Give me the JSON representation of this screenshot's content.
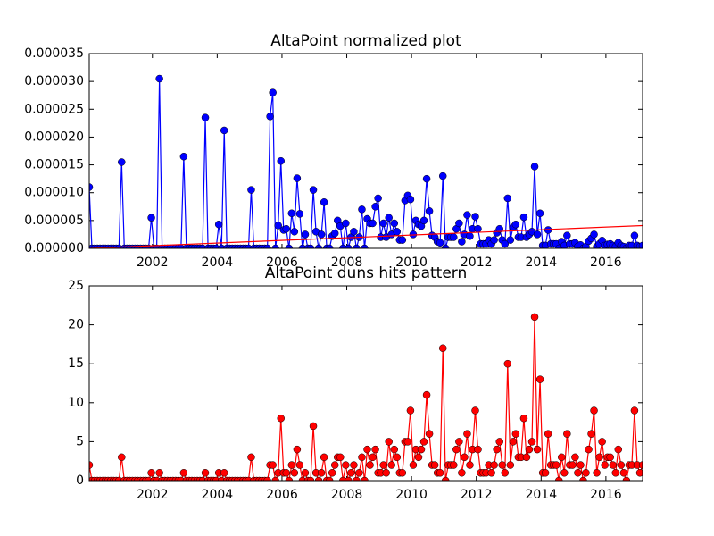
{
  "chart_data": [
    {
      "type": "line",
      "title": "AltaPoint normalized plot",
      "x": [
        2000.05,
        2000.133,
        2000.217,
        2000.3,
        2000.383,
        2000.467,
        2000.55,
        2000.633,
        2000.717,
        2000.8,
        2000.883,
        2000.967,
        2001.05,
        2001.133,
        2001.217,
        2001.3,
        2001.383,
        2001.467,
        2001.55,
        2001.633,
        2001.717,
        2001.8,
        2001.883,
        2001.967,
        2002.05,
        2002.133,
        2002.217,
        2002.3,
        2002.383,
        2002.467,
        2002.55,
        2002.633,
        2002.717,
        2002.8,
        2002.883,
        2002.967,
        2003.05,
        2003.133,
        2003.217,
        2003.3,
        2003.383,
        2003.467,
        2003.55,
        2003.633,
        2003.717,
        2003.8,
        2003.883,
        2003.967,
        2004.05,
        2004.133,
        2004.217,
        2004.3,
        2004.383,
        2004.467,
        2004.55,
        2004.633,
        2004.717,
        2004.8,
        2004.883,
        2004.967,
        2005.05,
        2005.133,
        2005.217,
        2005.3,
        2005.383,
        2005.467,
        2005.55,
        2005.633,
        2005.717,
        2005.8,
        2005.883,
        2005.967,
        2006.05,
        2006.133,
        2006.217,
        2006.3,
        2006.383,
        2006.467,
        2006.55,
        2006.633,
        2006.717,
        2006.8,
        2006.883,
        2006.967,
        2007.05,
        2007.133,
        2007.217,
        2007.3,
        2007.383,
        2007.467,
        2007.55,
        2007.633,
        2007.717,
        2007.8,
        2007.883,
        2007.967,
        2008.05,
        2008.133,
        2008.217,
        2008.3,
        2008.383,
        2008.467,
        2008.55,
        2008.633,
        2008.717,
        2008.8,
        2008.883,
        2008.967,
        2009.05,
        2009.133,
        2009.217,
        2009.3,
        2009.383,
        2009.467,
        2009.55,
        2009.633,
        2009.717,
        2009.8,
        2009.883,
        2009.967,
        2010.05,
        2010.133,
        2010.217,
        2010.3,
        2010.383,
        2010.467,
        2010.55,
        2010.633,
        2010.717,
        2010.8,
        2010.883,
        2010.967,
        2011.05,
        2011.133,
        2011.217,
        2011.3,
        2011.383,
        2011.467,
        2011.55,
        2011.633,
        2011.717,
        2011.8,
        2011.883,
        2011.967,
        2012.05,
        2012.133,
        2012.217,
        2012.3,
        2012.383,
        2012.467,
        2012.55,
        2012.633,
        2012.717,
        2012.8,
        2012.883,
        2012.967,
        2013.05,
        2013.133,
        2013.217,
        2013.3,
        2013.383,
        2013.467,
        2013.55,
        2013.633,
        2013.717,
        2013.8,
        2013.883,
        2013.967,
        2014.05,
        2014.133,
        2014.217,
        2014.3,
        2014.383,
        2014.467,
        2014.55,
        2014.633,
        2014.717,
        2014.8,
        2014.883,
        2014.967,
        2015.05,
        2015.133,
        2015.217,
        2015.3,
        2015.383,
        2015.467,
        2015.55,
        2015.633,
        2015.717,
        2015.8,
        2015.883,
        2015.967,
        2016.05,
        2016.133,
        2016.217,
        2016.3,
        2016.383,
        2016.467,
        2016.55,
        2016.633,
        2016.717,
        2016.8,
        2016.883,
        2016.967,
        2017.05,
        2017.133
      ],
      "series": [
        {
          "color": "#0000ff",
          "marker": "o",
          "values": [
            1.1e-05,
            0,
            0,
            0,
            0,
            0,
            0,
            0,
            0,
            0,
            0,
            0,
            1.55e-05,
            0,
            0,
            0,
            0,
            0,
            0,
            0,
            0,
            0,
            0,
            5.5e-06,
            0,
            0,
            3.05e-05,
            0,
            0,
            0,
            0,
            0,
            0,
            0,
            0,
            1.65e-05,
            0,
            0,
            0,
            0,
            0,
            0,
            0,
            2.35e-05,
            0,
            0,
            0,
            0,
            4.3e-06,
            0,
            2.12e-05,
            0,
            0,
            0,
            0,
            0,
            0,
            0,
            0,
            0,
            1.05e-05,
            0,
            0,
            0,
            0,
            0,
            0,
            2.37e-05,
            2.8e-05,
            0,
            4.1e-06,
            1.57e-05,
            3.3e-06,
            3.5e-06,
            0,
            6.3e-06,
            3e-06,
            1.26e-05,
            6.2e-06,
            0,
            2.5e-06,
            0,
            0,
            1.05e-05,
            3e-06,
            0,
            2.5e-06,
            8.3e-06,
            0,
            0,
            2.2e-06,
            2.7e-06,
            5e-06,
            4e-06,
            0,
            4.5e-06,
            0,
            2e-06,
            3e-06,
            0,
            2e-06,
            7e-06,
            0,
            5.3e-06,
            4.5e-06,
            4.5e-06,
            7.5e-06,
            9e-06,
            2e-06,
            4.5e-06,
            2e-06,
            5.5e-06,
            2.5e-06,
            4.5e-06,
            3e-06,
            1.5e-06,
            1.5e-06,
            8.6e-06,
            9.5e-06,
            8.8e-06,
            2.5e-06,
            5e-06,
            4.3e-06,
            4e-06,
            5e-06,
            1.25e-05,
            6.7e-06,
            2.3e-06,
            2e-06,
            1.2e-06,
            1e-06,
            1.3e-05,
            0,
            2e-06,
            2e-06,
            2e-06,
            3.5e-06,
            4.5e-06,
            1.2e-06,
            2.5e-06,
            6e-06,
            2.2e-06,
            3.5e-06,
            5.7e-06,
            3.5e-06,
            8e-07,
            8e-07,
            8e-07,
            1.5e-06,
            8e-07,
            1.5e-06,
            2.8e-06,
            3.5e-06,
            1.5e-06,
            8e-07,
            9e-06,
            1.5e-06,
            3.8e-06,
            4.3e-06,
            2e-06,
            2e-06,
            5.6e-06,
            2e-06,
            2.5e-06,
            3e-06,
            1.47e-05,
            2.5e-06,
            6.3e-06,
            5e-07,
            5e-07,
            3.3e-06,
            8e-07,
            8e-07,
            8e-07,
            0,
            1.2e-06,
            5e-07,
            2.3e-06,
            8e-07,
            8e-07,
            1e-06,
            3e-07,
            6e-07,
            0,
            3e-07,
            1.3e-06,
            1.8e-06,
            2.5e-06,
            3e-07,
            8e-07,
            1.4e-06,
            5e-07,
            7e-07,
            8e-07,
            5e-07,
            3e-07,
            1e-06,
            5e-07,
            3e-07,
            0,
            5e-07,
            5e-07,
            2.3e-06,
            5e-07,
            3e-07,
            5e-07
          ]
        },
        {
          "color": "#ff0000",
          "x": [
            2000.05,
            2017.133
          ],
          "values": [
            0,
            4.1e-06
          ]
        }
      ],
      "xlim": [
        2000.05,
        2017.133
      ],
      "xticks": [
        2002,
        2004,
        2006,
        2008,
        2010,
        2012,
        2014,
        2016
      ],
      "ylim": [
        0,
        3.5e-05
      ],
      "yticks": [
        {
          "value": 0,
          "label": "0.000000"
        },
        {
          "value": 5e-06,
          "label": "0.000005"
        },
        {
          "value": 1e-05,
          "label": "0.000010"
        },
        {
          "value": 1.5e-05,
          "label": "0.000015"
        },
        {
          "value": 2e-05,
          "label": "0.000020"
        },
        {
          "value": 2.5e-05,
          "label": "0.000025"
        },
        {
          "value": 3e-05,
          "label": "0.000030"
        },
        {
          "value": 3.5e-05,
          "label": "0.000035"
        }
      ]
    },
    {
      "type": "line",
      "title": "AltaPoint duns hits pattern",
      "x": [
        2000.05,
        2000.133,
        2000.217,
        2000.3,
        2000.383,
        2000.467,
        2000.55,
        2000.633,
        2000.717,
        2000.8,
        2000.883,
        2000.967,
        2001.05,
        2001.133,
        2001.217,
        2001.3,
        2001.383,
        2001.467,
        2001.55,
        2001.633,
        2001.717,
        2001.8,
        2001.883,
        2001.967,
        2002.05,
        2002.133,
        2002.217,
        2002.3,
        2002.383,
        2002.467,
        2002.55,
        2002.633,
        2002.717,
        2002.8,
        2002.883,
        2002.967,
        2003.05,
        2003.133,
        2003.217,
        2003.3,
        2003.383,
        2003.467,
        2003.55,
        2003.633,
        2003.717,
        2003.8,
        2003.883,
        2003.967,
        2004.05,
        2004.133,
        2004.217,
        2004.3,
        2004.383,
        2004.467,
        2004.55,
        2004.633,
        2004.717,
        2004.8,
        2004.883,
        2004.967,
        2005.05,
        2005.133,
        2005.217,
        2005.3,
        2005.383,
        2005.467,
        2005.55,
        2005.633,
        2005.717,
        2005.8,
        2005.883,
        2005.967,
        2006.05,
        2006.133,
        2006.217,
        2006.3,
        2006.383,
        2006.467,
        2006.55,
        2006.633,
        2006.717,
        2006.8,
        2006.883,
        2006.967,
        2007.05,
        2007.133,
        2007.217,
        2007.3,
        2007.383,
        2007.467,
        2007.55,
        2007.633,
        2007.717,
        2007.8,
        2007.883,
        2007.967,
        2008.05,
        2008.133,
        2008.217,
        2008.3,
        2008.383,
        2008.467,
        2008.55,
        2008.633,
        2008.717,
        2008.8,
        2008.883,
        2008.967,
        2009.05,
        2009.133,
        2009.217,
        2009.3,
        2009.383,
        2009.467,
        2009.55,
        2009.633,
        2009.717,
        2009.8,
        2009.883,
        2009.967,
        2010.05,
        2010.133,
        2010.217,
        2010.3,
        2010.383,
        2010.467,
        2010.55,
        2010.633,
        2010.717,
        2010.8,
        2010.883,
        2010.967,
        2011.05,
        2011.133,
        2011.217,
        2011.3,
        2011.383,
        2011.467,
        2011.55,
        2011.633,
        2011.717,
        2011.8,
        2011.883,
        2011.967,
        2012.05,
        2012.133,
        2012.217,
        2012.3,
        2012.383,
        2012.467,
        2012.55,
        2012.633,
        2012.717,
        2012.8,
        2012.883,
        2012.967,
        2013.05,
        2013.133,
        2013.217,
        2013.3,
        2013.383,
        2013.467,
        2013.55,
        2013.633,
        2013.717,
        2013.8,
        2013.883,
        2013.967,
        2014.05,
        2014.133,
        2014.217,
        2014.3,
        2014.383,
        2014.467,
        2014.55,
        2014.633,
        2014.717,
        2014.8,
        2014.883,
        2014.967,
        2015.05,
        2015.133,
        2015.217,
        2015.3,
        2015.383,
        2015.467,
        2015.55,
        2015.633,
        2015.717,
        2015.8,
        2015.883,
        2015.967,
        2016.05,
        2016.133,
        2016.217,
        2016.3,
        2016.383,
        2016.467,
        2016.55,
        2016.633,
        2016.717,
        2016.8,
        2016.883,
        2016.967,
        2017.05,
        2017.133
      ],
      "series": [
        {
          "color": "#ff0000",
          "marker": "o",
          "values": [
            2,
            0,
            0,
            0,
            0,
            0,
            0,
            0,
            0,
            0,
            0,
            0,
            3,
            0,
            0,
            0,
            0,
            0,
            0,
            0,
            0,
            0,
            0,
            1,
            0,
            0,
            1,
            0,
            0,
            0,
            0,
            0,
            0,
            0,
            0,
            1,
            0,
            0,
            0,
            0,
            0,
            0,
            0,
            1,
            0,
            0,
            0,
            0,
            1,
            0,
            1,
            0,
            0,
            0,
            0,
            0,
            0,
            0,
            0,
            0,
            3,
            0,
            0,
            0,
            0,
            0,
            0,
            2,
            2,
            0,
            1,
            8,
            1,
            1,
            0,
            2,
            1,
            4,
            2,
            0,
            1,
            0,
            0,
            7,
            1,
            0,
            1,
            3,
            0,
            0,
            1,
            2,
            3,
            3,
            0,
            2,
            0,
            1,
            2,
            0,
            1,
            3,
            0,
            4,
            2,
            3,
            4,
            1,
            1,
            2,
            1,
            5,
            2,
            4,
            3,
            1,
            1,
            5,
            5,
            9,
            2,
            4,
            3,
            4,
            5,
            11,
            6,
            2,
            2,
            1,
            1,
            17,
            0,
            2,
            2,
            2,
            4,
            5,
            1,
            3,
            6,
            2,
            4,
            9,
            4,
            1,
            1,
            1,
            2,
            1,
            2,
            4,
            5,
            2,
            1,
            15,
            2,
            5,
            6,
            3,
            3,
            8,
            3,
            4,
            5,
            21,
            4,
            13,
            1,
            1,
            6,
            2,
            2,
            2,
            0,
            3,
            1,
            6,
            2,
            2,
            3,
            1,
            2,
            0,
            1,
            4,
            6,
            9,
            1,
            3,
            5,
            2,
            3,
            3,
            2,
            1,
            4,
            2,
            1,
            0,
            2,
            2,
            9,
            2,
            1,
            2
          ]
        }
      ],
      "xlim": [
        2000.05,
        2017.133
      ],
      "xticks": [
        2002,
        2004,
        2006,
        2008,
        2010,
        2012,
        2014,
        2016
      ],
      "ylim": [
        0,
        25
      ],
      "yticks": [
        0,
        5,
        10,
        15,
        20,
        25
      ]
    }
  ]
}
